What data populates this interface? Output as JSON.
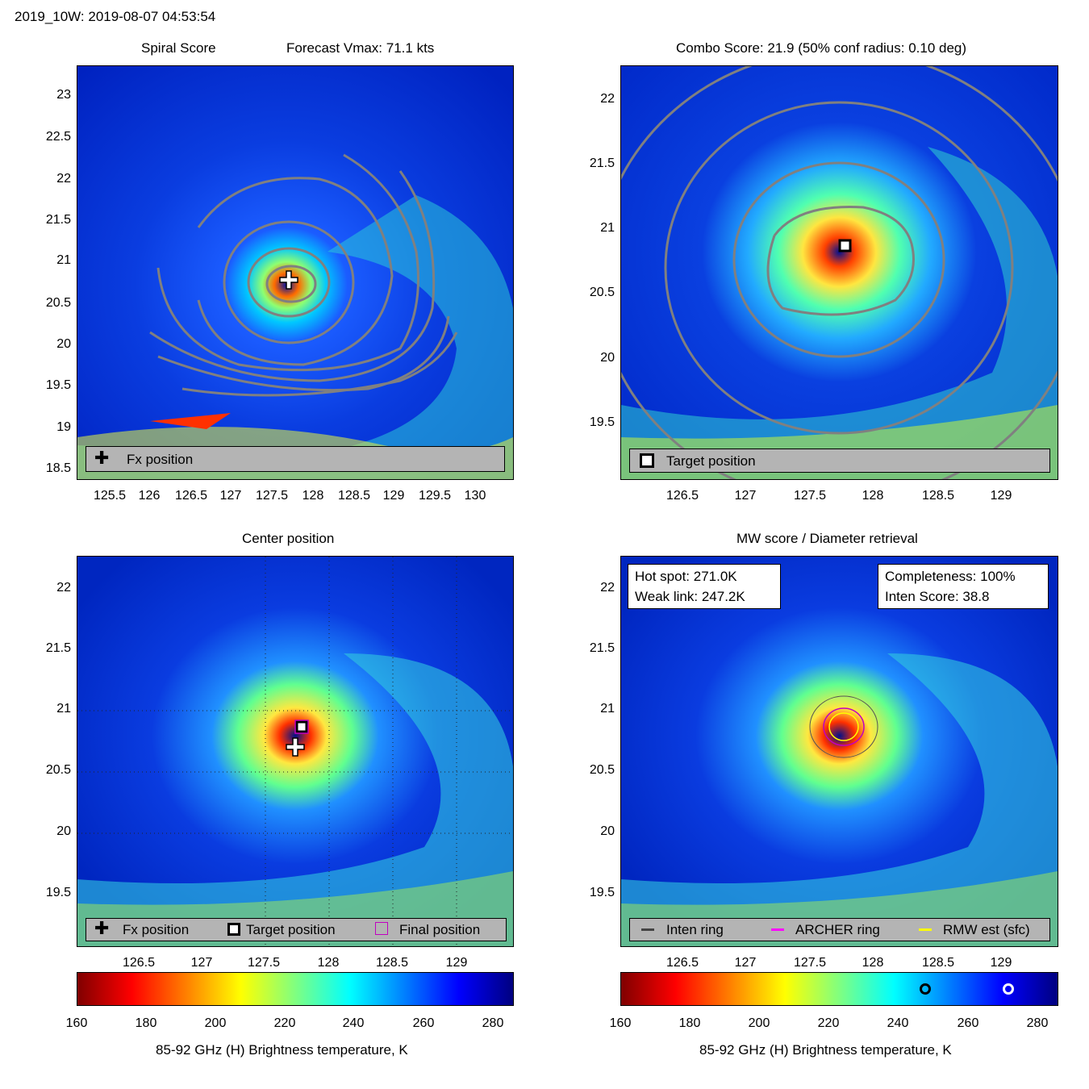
{
  "header": {
    "title": "2019_10W: 2019-08-07 04:53:54"
  },
  "panels": {
    "spiral": {
      "title_left": "Spiral Score",
      "title_right": "Forecast Vmax: 71.1 kts",
      "legend": {
        "fx": "Fx position"
      },
      "yticks": [
        "23",
        "22.5",
        "22",
        "21.5",
        "21",
        "20.5",
        "20",
        "19.5",
        "19",
        "18.5"
      ],
      "xticks": [
        "125.5",
        "126",
        "126.5",
        "127",
        "127.5",
        "128",
        "128.5",
        "129",
        "129.5",
        "130"
      ]
    },
    "combo": {
      "title": "Combo Score: 21.9  (50% conf radius: 0.10 deg)",
      "legend": {
        "target": "Target position"
      },
      "yticks": [
        "22",
        "21.5",
        "21",
        "20.5",
        "20",
        "19.5"
      ],
      "xticks": [
        "126.5",
        "127",
        "127.5",
        "128",
        "128.5",
        "129"
      ]
    },
    "center": {
      "title": "Center position",
      "legend": {
        "fx": "Fx position",
        "target": "Target position",
        "final": "Final position"
      },
      "yticks": [
        "22",
        "21.5",
        "21",
        "20.5",
        "20",
        "19.5"
      ],
      "xticks": [
        "126.5",
        "127",
        "127.5",
        "128",
        "128.5",
        "129"
      ]
    },
    "mw": {
      "title": "MW score / Diameter retrieval",
      "hot_spot": "Hot spot: 271.0K",
      "weak_link": "Weak link: 247.2K",
      "completeness": "Completeness: 100%",
      "inten_score": "Inten Score: 38.8",
      "legend": {
        "inten": "Inten ring",
        "archer": "ARCHER ring",
        "rmw": "RMW est (sfc)"
      },
      "yticks": [
        "22",
        "21.5",
        "21",
        "20.5",
        "20",
        "19.5"
      ],
      "xticks": [
        "126.5",
        "127",
        "127.5",
        "128",
        "128.5",
        "129"
      ]
    }
  },
  "colorbar": {
    "ticks": [
      "160",
      "180",
      "200",
      "220",
      "240",
      "260",
      "280"
    ],
    "label": "85-92 GHz (H) Brightness temperature, K"
  },
  "chart_data": [
    {
      "type": "heatmap",
      "title": "Spiral Score",
      "subtitle": "Forecast Vmax: 71.1 kts",
      "x_range": [
        125.1,
        130.45
      ],
      "y_range": [
        18.4,
        23.35
      ],
      "markers": [
        {
          "name": "Fx position",
          "lon": 127.73,
          "lat": 20.67
        }
      ],
      "colormap": "jet",
      "clim": [
        160,
        285
      ]
    },
    {
      "type": "heatmap",
      "title": "Combo Score: 21.9  (50% conf radius: 0.10 deg)",
      "x_range": [
        126.0,
        129.45
      ],
      "y_range": [
        19.05,
        22.3
      ],
      "markers": [
        {
          "name": "Target position",
          "lon": 127.77,
          "lat": 20.87
        }
      ],
      "colormap": "jet",
      "clim": [
        160,
        285
      ]
    },
    {
      "type": "heatmap",
      "title": "Center position",
      "x_range": [
        126.0,
        129.45
      ],
      "y_range": [
        19.05,
        22.3
      ],
      "markers": [
        {
          "name": "Fx position",
          "lon": 127.73,
          "lat": 20.67
        },
        {
          "name": "Target position",
          "lon": 127.77,
          "lat": 20.87
        },
        {
          "name": "Final position",
          "lon": 127.77,
          "lat": 20.87
        }
      ],
      "colormap": "jet",
      "clim": [
        160,
        285
      ]
    },
    {
      "type": "heatmap",
      "title": "MW score / Diameter retrieval",
      "x_range": [
        126.0,
        129.45
      ],
      "y_range": [
        19.05,
        22.3
      ],
      "colorbar_markers": [
        {
          "name": "Weak link",
          "value": 247.2
        },
        {
          "name": "Hot spot",
          "value": 271.0
        }
      ],
      "colormap": "jet",
      "clim": [
        160,
        285
      ]
    }
  ]
}
